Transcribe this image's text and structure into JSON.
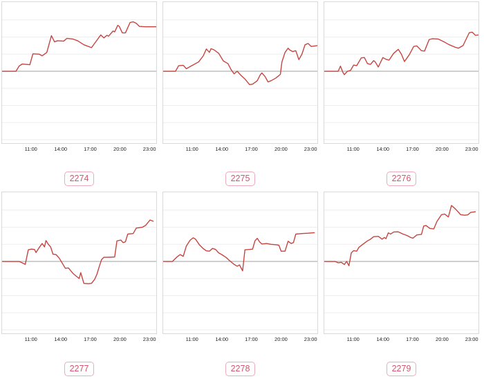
{
  "colors": {
    "line": "#c5433e",
    "zero_line": "#b2b2b2",
    "gridline": "#ededed",
    "plot_border": "#d9d9d9",
    "tick_text": "#1f1f1f",
    "badge_border": "#ecaabb",
    "badge_text": "#d25570"
  },
  "axis": {
    "tick_labels": [
      "11:00",
      "14:00",
      "17:00",
      "20:00",
      "23:00"
    ],
    "tick_positions_pct": [
      19.0,
      38.1,
      57.1,
      76.2,
      95.2
    ]
  },
  "chart_data": [
    {
      "label": "2274",
      "type": "line",
      "x_ticks": [
        "11:00",
        "14:00",
        "17:00",
        "20:00",
        "23:00"
      ],
      "ylabel": "",
      "xlabel": "",
      "y_unit": "gridline-units (1 unit = 1 gridline step, 0 = gray baseline)",
      "ylim": [
        -4.2,
        4.0
      ],
      "grid": true,
      "legend": false,
      "points": [
        [
          0,
          0
        ],
        [
          9,
          0
        ],
        [
          11,
          0.3
        ],
        [
          13,
          0.42
        ],
        [
          18,
          0.38
        ],
        [
          20,
          1.02
        ],
        [
          24,
          1.0
        ],
        [
          26,
          0.9
        ],
        [
          29,
          1.1
        ],
        [
          32,
          2.08
        ],
        [
          34,
          1.72
        ],
        [
          36,
          1.78
        ],
        [
          40,
          1.76
        ],
        [
          42,
          1.92
        ],
        [
          46,
          1.88
        ],
        [
          49,
          1.78
        ],
        [
          53,
          1.55
        ],
        [
          58,
          1.38
        ],
        [
          63,
          2.0
        ],
        [
          64,
          2.12
        ],
        [
          66,
          1.95
        ],
        [
          68,
          2.1
        ],
        [
          69,
          2.05
        ],
        [
          72,
          2.35
        ],
        [
          73,
          2.3
        ],
        [
          75,
          2.68
        ],
        [
          76,
          2.62
        ],
        [
          78,
          2.24
        ],
        [
          80,
          2.24
        ],
        [
          83,
          2.85
        ],
        [
          85,
          2.89
        ],
        [
          87,
          2.8
        ],
        [
          89,
          2.62
        ],
        [
          93,
          2.6
        ],
        [
          100,
          2.6
        ]
      ]
    },
    {
      "label": "2275",
      "type": "line",
      "x_ticks": [
        "11:00",
        "14:00",
        "17:00",
        "20:00",
        "23:00"
      ],
      "ylabel": "",
      "xlabel": "",
      "y_unit": "gridline-units (1 unit = 1 gridline step, 0 = gray baseline)",
      "ylim": [
        -4.2,
        4.0
      ],
      "grid": true,
      "legend": false,
      "points": [
        [
          0,
          0
        ],
        [
          8,
          0
        ],
        [
          10,
          0.32
        ],
        [
          13,
          0.35
        ],
        [
          15,
          0.15
        ],
        [
          18,
          0.3
        ],
        [
          23,
          0.55
        ],
        [
          26,
          0.9
        ],
        [
          28,
          1.3
        ],
        [
          30,
          1.1
        ],
        [
          31,
          1.32
        ],
        [
          33,
          1.25
        ],
        [
          36,
          1.05
        ],
        [
          39,
          0.6
        ],
        [
          42,
          0.45
        ],
        [
          44,
          0.1
        ],
        [
          46,
          -0.15
        ],
        [
          48,
          0.0
        ],
        [
          50,
          -0.2
        ],
        [
          53,
          -0.45
        ],
        [
          56,
          -0.78
        ],
        [
          58,
          -0.75
        ],
        [
          61,
          -0.55
        ],
        [
          63,
          -0.2
        ],
        [
          64,
          -0.1
        ],
        [
          66,
          -0.3
        ],
        [
          68,
          -0.62
        ],
        [
          70,
          -0.55
        ],
        [
          73,
          -0.4
        ],
        [
          76,
          -0.18
        ],
        [
          77,
          0.55
        ],
        [
          79,
          1.1
        ],
        [
          81,
          1.35
        ],
        [
          82,
          1.25
        ],
        [
          84,
          1.15
        ],
        [
          86,
          1.2
        ],
        [
          88,
          0.68
        ],
        [
          90,
          1.0
        ],
        [
          92,
          1.55
        ],
        [
          94,
          1.62
        ],
        [
          96,
          1.45
        ],
        [
          100,
          1.5
        ]
      ]
    },
    {
      "label": "2276",
      "type": "line",
      "x_ticks": [
        "11:00",
        "14:00",
        "17:00",
        "20:00",
        "23:00"
      ],
      "ylabel": "",
      "xlabel": "",
      "y_unit": "gridline-units (1 unit = 1 gridline step, 0 = gray baseline)",
      "ylim": [
        -4.2,
        4.0
      ],
      "grid": true,
      "legend": false,
      "points": [
        [
          0,
          0
        ],
        [
          9,
          0
        ],
        [
          10.5,
          0.3
        ],
        [
          12,
          -0.05
        ],
        [
          13,
          -0.2
        ],
        [
          15,
          0
        ],
        [
          17,
          0.05
        ],
        [
          19,
          0.36
        ],
        [
          21,
          0.33
        ],
        [
          24,
          0.78
        ],
        [
          26,
          0.8
        ],
        [
          28,
          0.45
        ],
        [
          30,
          0.4
        ],
        [
          32,
          0.62
        ],
        [
          33,
          0.55
        ],
        [
          35,
          0.25
        ],
        [
          38,
          0.8
        ],
        [
          40,
          0.7
        ],
        [
          42,
          0.65
        ],
        [
          45,
          1.05
        ],
        [
          48,
          1.28
        ],
        [
          50,
          1.0
        ],
        [
          52,
          0.57
        ],
        [
          55,
          0.95
        ],
        [
          58,
          1.45
        ],
        [
          60,
          1.48
        ],
        [
          63,
          1.2
        ],
        [
          65,
          1.18
        ],
        [
          68,
          1.85
        ],
        [
          70,
          1.9
        ],
        [
          74,
          1.88
        ],
        [
          78,
          1.7
        ],
        [
          81,
          1.55
        ],
        [
          85,
          1.4
        ],
        [
          87,
          1.35
        ],
        [
          90,
          1.5
        ],
        [
          94,
          2.25
        ],
        [
          96,
          2.28
        ],
        [
          98,
          2.1
        ],
        [
          100,
          2.12
        ]
      ]
    },
    {
      "label": "2277",
      "type": "line",
      "x_ticks": [
        "11:00",
        "14:00",
        "17:00",
        "20:00",
        "23:00"
      ],
      "ylabel": "",
      "xlabel": "",
      "y_unit": "gridline-units (1 unit = 1 gridline step, 0 = gray baseline)",
      "ylim": [
        -4.2,
        4.0
      ],
      "grid": true,
      "legend": false,
      "points": [
        [
          0,
          0
        ],
        [
          11,
          0
        ],
        [
          13,
          -0.08
        ],
        [
          15,
          -0.17
        ],
        [
          17,
          0.68
        ],
        [
          19,
          0.72
        ],
        [
          21,
          0.7
        ],
        [
          22,
          0.52
        ],
        [
          24,
          0.8
        ],
        [
          26,
          1.05
        ],
        [
          27.5,
          0.85
        ],
        [
          28.5,
          1.22
        ],
        [
          30,
          1.0
        ],
        [
          31.5,
          0.85
        ],
        [
          33,
          0.42
        ],
        [
          35,
          0.4
        ],
        [
          37,
          0.2
        ],
        [
          39,
          -0.1
        ],
        [
          41,
          -0.4
        ],
        [
          43,
          -0.38
        ],
        [
          46,
          -0.7
        ],
        [
          48,
          -0.85
        ],
        [
          50,
          -1.0
        ],
        [
          51,
          -0.65
        ],
        [
          53,
          -1.28
        ],
        [
          56,
          -1.3
        ],
        [
          58,
          -1.28
        ],
        [
          60,
          -1.05
        ],
        [
          61.5,
          -0.75
        ],
        [
          63,
          -0.3
        ],
        [
          64.5,
          0.1
        ],
        [
          66,
          0.24
        ],
        [
          70,
          0.25
        ],
        [
          73,
          0.26
        ],
        [
          74.5,
          1.2
        ],
        [
          77,
          1.25
        ],
        [
          78.5,
          1.1
        ],
        [
          80,
          1.15
        ],
        [
          81.5,
          1.6
        ],
        [
          85,
          1.63
        ],
        [
          87,
          1.95
        ],
        [
          91,
          2.0
        ],
        [
          93,
          2.1
        ],
        [
          96,
          2.42
        ],
        [
          98,
          2.35
        ]
      ]
    },
    {
      "label": "2278",
      "type": "line",
      "x_ticks": [
        "11:00",
        "14:00",
        "17:00",
        "20:00",
        "23:00"
      ],
      "ylabel": "",
      "xlabel": "",
      "y_unit": "gridline-units (1 unit = 1 gridline step, 0 = gray baseline)",
      "ylim": [
        -4.2,
        4.0
      ],
      "grid": true,
      "legend": false,
      "points": [
        [
          0,
          0
        ],
        [
          6,
          0
        ],
        [
          9,
          0.27
        ],
        [
          11,
          0.4
        ],
        [
          13,
          0.3
        ],
        [
          15,
          0.9
        ],
        [
          17.5,
          1.25
        ],
        [
          19.5,
          1.38
        ],
        [
          21,
          1.3
        ],
        [
          23.5,
          0.97
        ],
        [
          26,
          0.75
        ],
        [
          28,
          0.62
        ],
        [
          30,
          0.6
        ],
        [
          32,
          0.76
        ],
        [
          34,
          0.7
        ],
        [
          36,
          0.5
        ],
        [
          38,
          0.4
        ],
        [
          41,
          0.22
        ],
        [
          43,
          0.05
        ],
        [
          46,
          -0.17
        ],
        [
          48,
          -0.28
        ],
        [
          49.5,
          -0.2
        ],
        [
          51.5,
          -0.55
        ],
        [
          53,
          0.68
        ],
        [
          56,
          0.7
        ],
        [
          58,
          0.72
        ],
        [
          59.5,
          1.2
        ],
        [
          61,
          1.35
        ],
        [
          62.5,
          1.15
        ],
        [
          64,
          1.02
        ],
        [
          67,
          1.05
        ],
        [
          70,
          1.0
        ],
        [
          73,
          0.98
        ],
        [
          75,
          0.95
        ],
        [
          76.5,
          0.6
        ],
        [
          79,
          0.6
        ],
        [
          81,
          1.18
        ],
        [
          83,
          1.05
        ],
        [
          84.5,
          1.1
        ],
        [
          86,
          1.6
        ],
        [
          90,
          1.63
        ],
        [
          94,
          1.65
        ],
        [
          98,
          1.68
        ]
      ]
    },
    {
      "label": "2279",
      "type": "line",
      "x_ticks": [
        "11:00",
        "14:00",
        "17:00",
        "20:00",
        "23:00"
      ],
      "ylabel": "",
      "xlabel": "",
      "y_unit": "gridline-units (1 unit = 1 gridline step, 0 = gray baseline)",
      "ylim": [
        -4.2,
        4.0
      ],
      "grid": true,
      "legend": false,
      "points": [
        [
          0,
          0
        ],
        [
          7,
          0
        ],
        [
          9,
          -0.08
        ],
        [
          11,
          -0.05
        ],
        [
          13,
          -0.18
        ],
        [
          14.5,
          0.0
        ],
        [
          16,
          -0.25
        ],
        [
          17.5,
          0.5
        ],
        [
          19,
          0.63
        ],
        [
          21,
          0.6
        ],
        [
          22.5,
          0.83
        ],
        [
          26,
          1.07
        ],
        [
          28,
          1.2
        ],
        [
          30,
          1.3
        ],
        [
          32,
          1.45
        ],
        [
          35,
          1.47
        ],
        [
          37.5,
          1.3
        ],
        [
          39,
          1.4
        ],
        [
          40,
          1.33
        ],
        [
          41.5,
          1.67
        ],
        [
          43,
          1.6
        ],
        [
          45,
          1.72
        ],
        [
          48,
          1.73
        ],
        [
          51,
          1.6
        ],
        [
          54,
          1.5
        ],
        [
          56,
          1.4
        ],
        [
          57.5,
          1.36
        ],
        [
          60,
          1.55
        ],
        [
          63,
          1.58
        ],
        [
          64.5,
          2.07
        ],
        [
          66,
          2.1
        ],
        [
          68.5,
          1.93
        ],
        [
          71,
          1.9
        ],
        [
          73,
          2.33
        ],
        [
          76,
          2.73
        ],
        [
          78,
          2.77
        ],
        [
          80.5,
          2.6
        ],
        [
          82.5,
          3.27
        ],
        [
          85,
          3.07
        ],
        [
          88.5,
          2.73
        ],
        [
          91,
          2.7
        ],
        [
          93,
          2.72
        ],
        [
          95,
          2.87
        ],
        [
          98,
          2.9
        ]
      ]
    }
  ]
}
